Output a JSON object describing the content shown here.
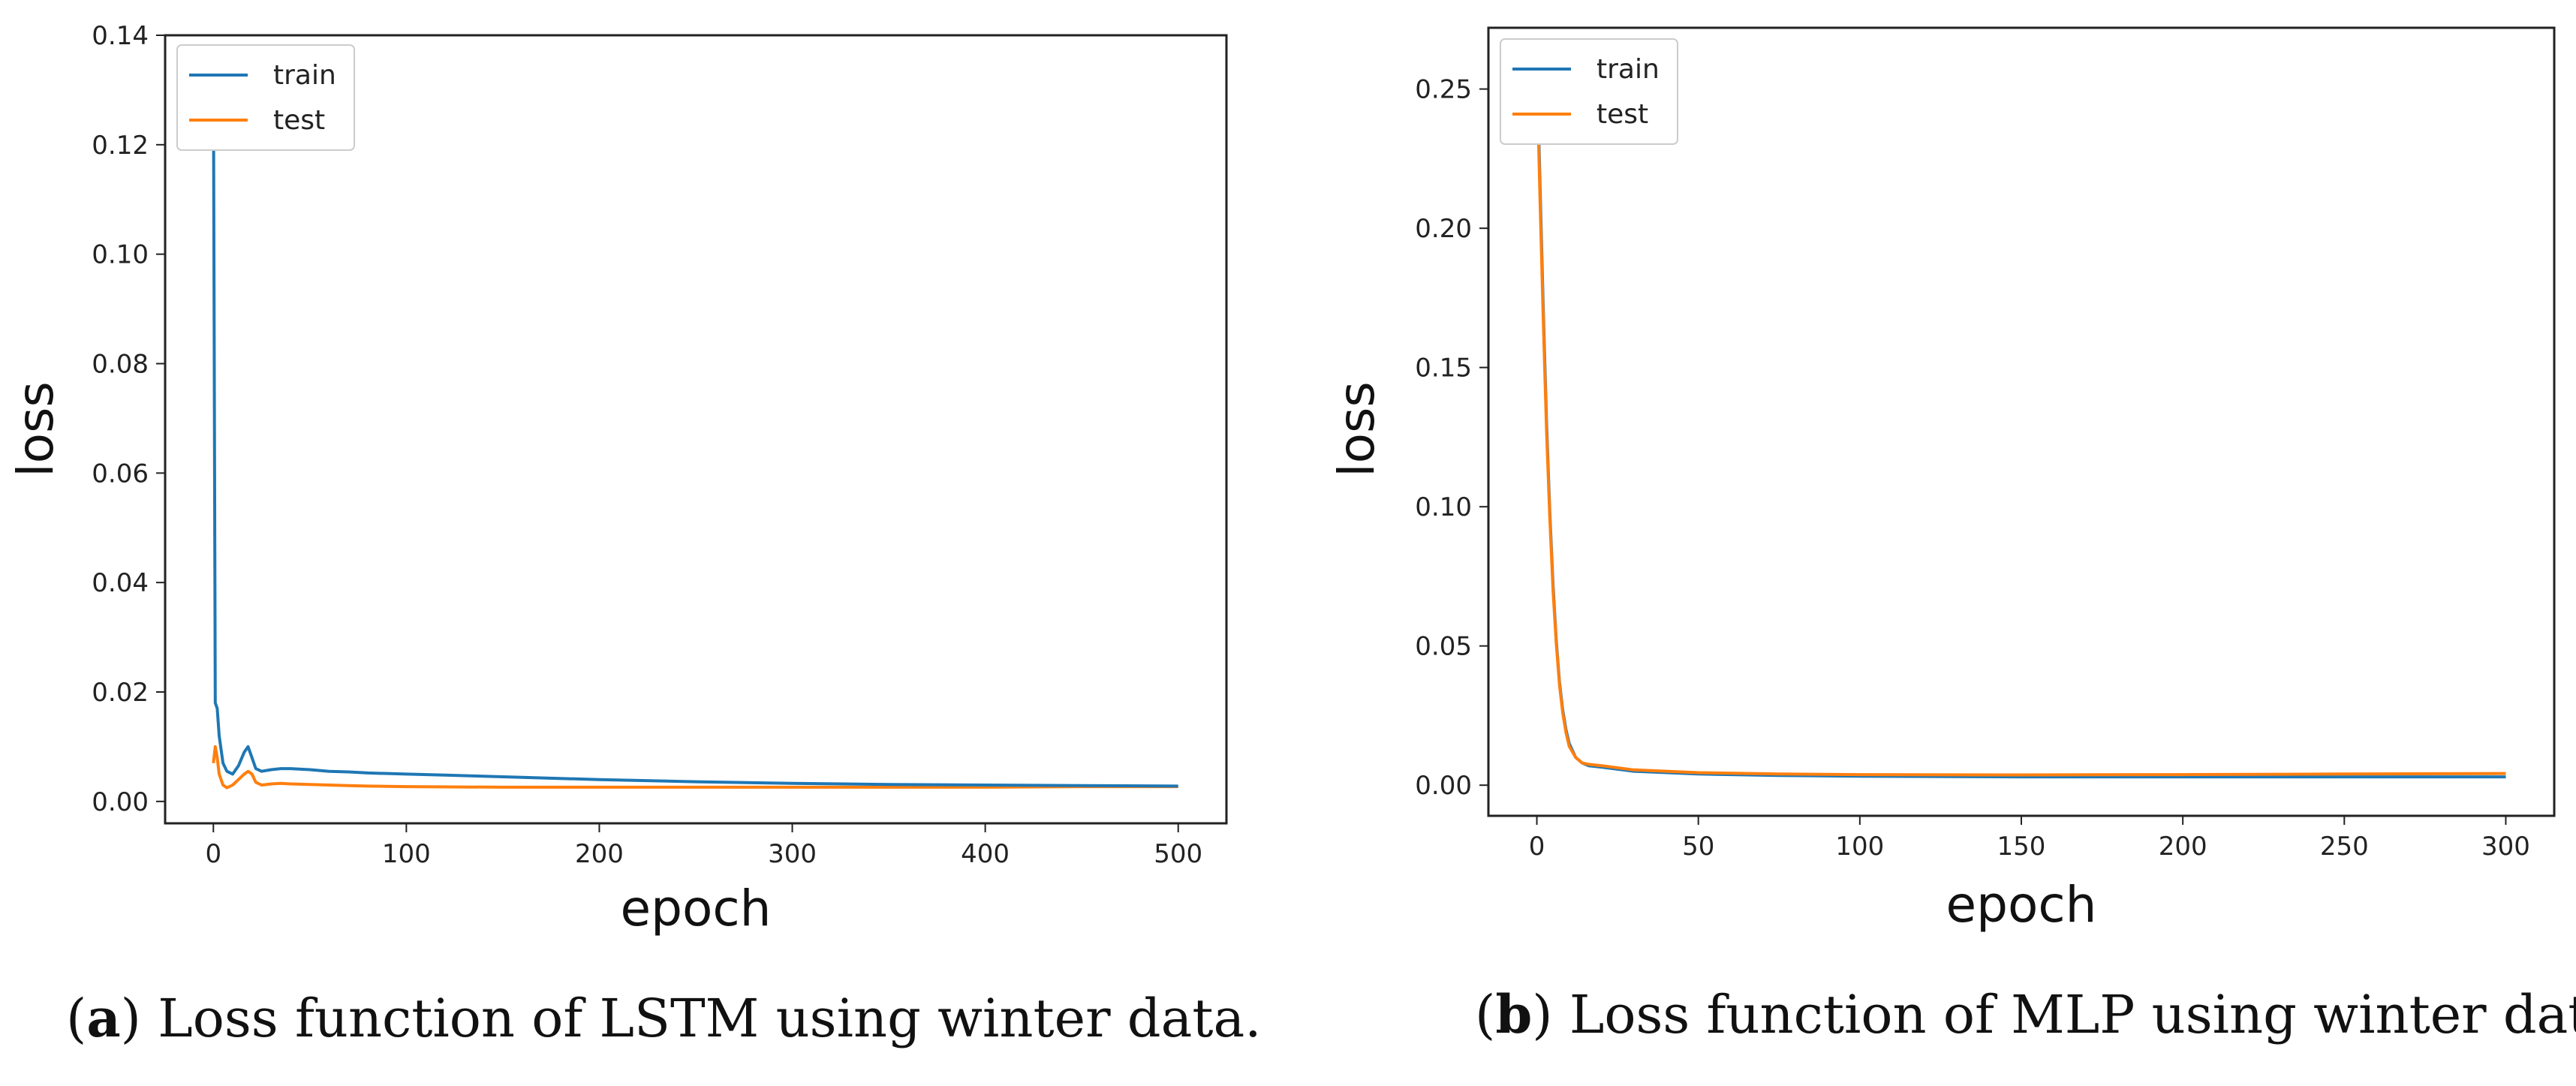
{
  "chart_data": [
    {
      "type": "line",
      "title": "",
      "xlabel": "epoch",
      "ylabel": "loss",
      "xlim": [
        -25,
        525
      ],
      "ylim": [
        -0.004,
        0.14
      ],
      "xticks": [
        0,
        100,
        200,
        300,
        400,
        500
      ],
      "xtick_labels": [
        "0",
        "100",
        "200",
        "300",
        "400",
        "500"
      ],
      "yticks": [
        0.0,
        0.02,
        0.04,
        0.06,
        0.08,
        0.1,
        0.12,
        0.14
      ],
      "ytick_labels": [
        "0.00",
        "0.02",
        "0.04",
        "0.06",
        "0.08",
        "0.10",
        "0.12",
        "0.14"
      ],
      "legend_position": "top-left",
      "series": [
        {
          "name": "train",
          "color": "#1f77b4",
          "x": [
            0,
            1,
            2,
            3,
            5,
            7,
            10,
            13,
            16,
            18,
            20,
            22,
            25,
            30,
            35,
            40,
            50,
            60,
            70,
            80,
            100,
            120,
            140,
            160,
            200,
            250,
            300,
            350,
            400,
            450,
            500
          ],
          "y": [
            0.134,
            0.018,
            0.017,
            0.012,
            0.007,
            0.0055,
            0.005,
            0.0065,
            0.009,
            0.01,
            0.008,
            0.006,
            0.0055,
            0.0058,
            0.006,
            0.006,
            0.0058,
            0.0055,
            0.0054,
            0.0052,
            0.005,
            0.0048,
            0.0046,
            0.0044,
            0.004,
            0.0036,
            0.0033,
            0.0031,
            0.003,
            0.0029,
            0.0028
          ]
        },
        {
          "name": "test",
          "color": "#ff7f0e",
          "x": [
            0,
            1,
            2,
            3,
            5,
            7,
            10,
            13,
            16,
            18,
            20,
            22,
            25,
            30,
            35,
            40,
            50,
            60,
            70,
            80,
            100,
            150,
            200,
            250,
            300,
            350,
            400,
            450,
            500
          ],
          "y": [
            0.007,
            0.01,
            0.008,
            0.005,
            0.003,
            0.0025,
            0.003,
            0.004,
            0.005,
            0.0055,
            0.005,
            0.0035,
            0.003,
            0.0032,
            0.0033,
            0.0032,
            0.0031,
            0.003,
            0.0029,
            0.0028,
            0.0027,
            0.0026,
            0.0026,
            0.0026,
            0.0026,
            0.0026,
            0.0026,
            0.0027,
            0.0027
          ]
        }
      ],
      "caption_label": "a",
      "caption_text": "Loss function of LSTM using winter data."
    },
    {
      "type": "line",
      "title": "",
      "xlabel": "epoch",
      "ylabel": "loss",
      "xlim": [
        -15,
        315
      ],
      "ylim": [
        -0.011,
        0.272
      ],
      "xticks": [
        0,
        50,
        100,
        150,
        200,
        250,
        300
      ],
      "xtick_labels": [
        "0",
        "50",
        "100",
        "150",
        "200",
        "250",
        "300"
      ],
      "yticks": [
        0.0,
        0.05,
        0.1,
        0.15,
        0.2,
        0.25
      ],
      "ytick_labels": [
        "0.00",
        "0.05",
        "0.10",
        "0.15",
        "0.20",
        "0.25"
      ],
      "legend_position": "top-left",
      "series": [
        {
          "name": "train",
          "color": "#1f77b4",
          "x": [
            0,
            1,
            2,
            3,
            4,
            5,
            6,
            7,
            8,
            9,
            10,
            12,
            14,
            16,
            20,
            30,
            50,
            75,
            100,
            150,
            200,
            250,
            300
          ],
          "y": [
            0.262,
            0.215,
            0.17,
            0.13,
            0.098,
            0.072,
            0.052,
            0.037,
            0.027,
            0.02,
            0.015,
            0.01,
            0.008,
            0.007,
            0.0065,
            0.005,
            0.004,
            0.0035,
            0.0032,
            0.003,
            0.003,
            0.003,
            0.003
          ]
        },
        {
          "name": "test",
          "color": "#ff7f0e",
          "x": [
            0,
            1,
            2,
            3,
            4,
            5,
            6,
            7,
            8,
            9,
            10,
            12,
            14,
            16,
            20,
            30,
            50,
            75,
            100,
            150,
            200,
            250,
            300
          ],
          "y": [
            0.257,
            0.21,
            0.166,
            0.127,
            0.096,
            0.07,
            0.051,
            0.036,
            0.026,
            0.019,
            0.014,
            0.01,
            0.008,
            0.0075,
            0.007,
            0.0055,
            0.0045,
            0.004,
            0.0038,
            0.0037,
            0.0038,
            0.004,
            0.0042
          ]
        }
      ],
      "caption_label": "b",
      "caption_text": "Loss function of MLP using winter data."
    }
  ]
}
